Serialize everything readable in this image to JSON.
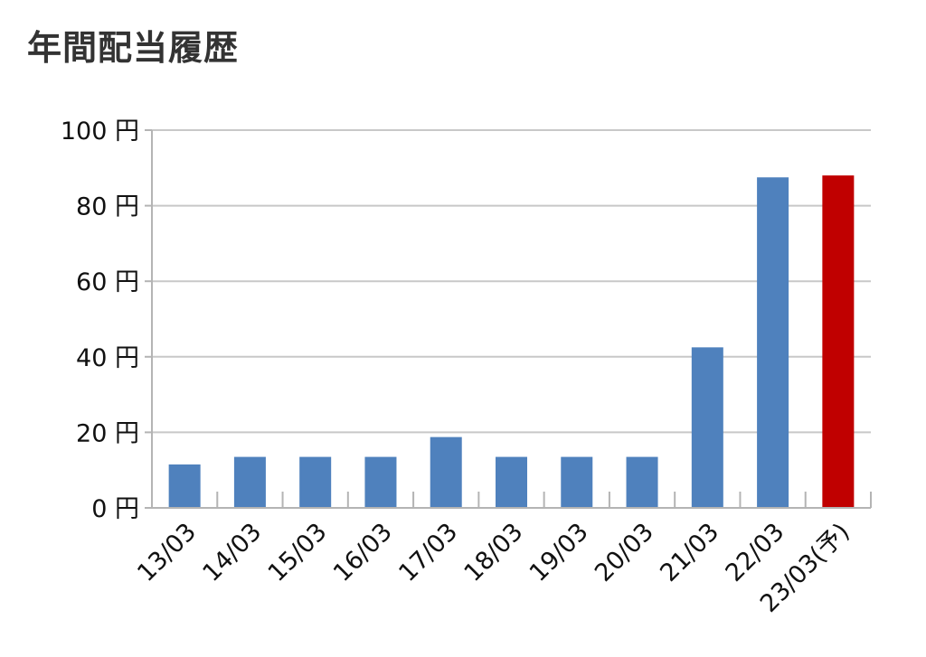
{
  "page": {
    "title": "年間配当履歴"
  },
  "chart_data": {
    "type": "bar",
    "title": "",
    "xlabel": "",
    "ylabel": "",
    "categories": [
      "13/03",
      "14/03",
      "15/03",
      "16/03",
      "17/03",
      "18/03",
      "19/03",
      "20/03",
      "21/03",
      "22/03",
      "23/03(予)"
    ],
    "values": [
      11.5,
      13.5,
      13.5,
      13.5,
      18.75,
      13.5,
      13.5,
      13.5,
      42.5,
      87.5,
      88
    ],
    "ylim": [
      0,
      100
    ],
    "yticks": [
      0,
      20,
      40,
      60,
      80,
      100
    ],
    "ytick_suffix": " 円",
    "grid": true,
    "legend": "none",
    "colors": {
      "actual": "#4f81bd",
      "forecast": "#c00000",
      "grid": "#c8c8c8",
      "axis": "#b4b4b4"
    },
    "forecast_index": 10
  }
}
